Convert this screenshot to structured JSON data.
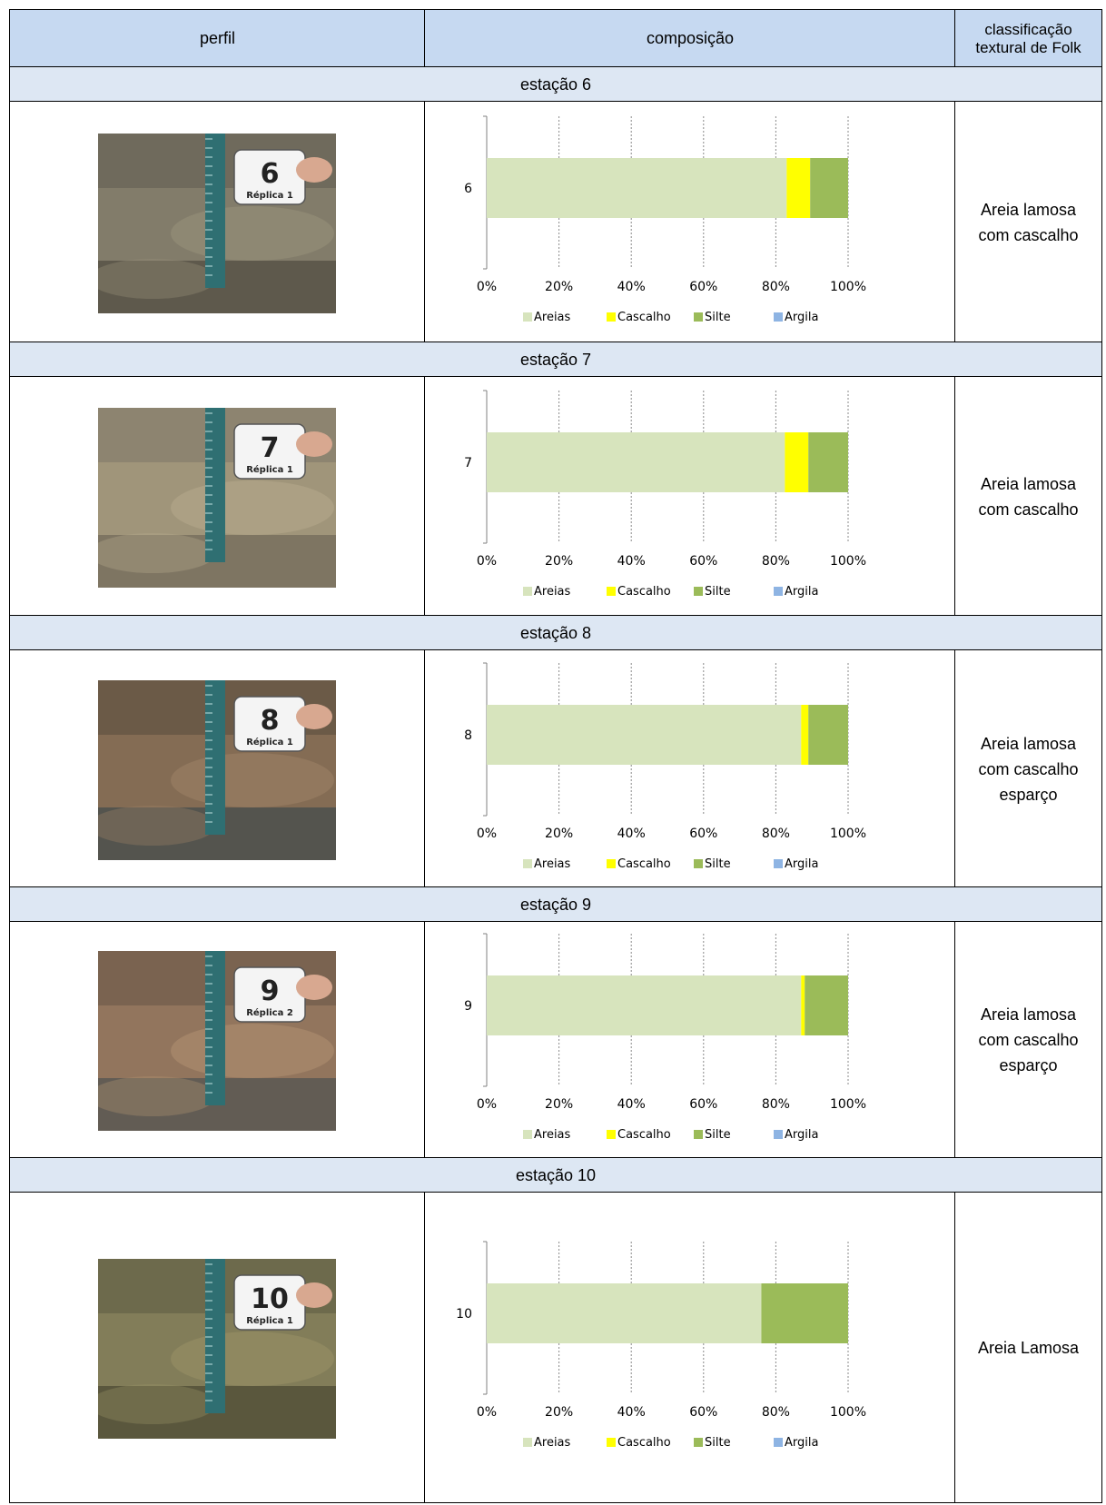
{
  "header": {
    "col1": "perfil",
    "col2": "composição",
    "col3_line1": "classificação",
    "col3_line2": "textural de Folk"
  },
  "rows": [
    {
      "station_label": "estação 6",
      "category": "6",
      "photo": {
        "marker_number": "6",
        "marker_text": "Réplica 1",
        "palette": "gray-brown"
      },
      "classification": "Areia lamosa\ncom cascalho"
    },
    {
      "station_label": "estação 7",
      "category": "7",
      "photo": {
        "marker_number": "7",
        "marker_text": "Réplica 1",
        "palette": "tan"
      },
      "classification": "Areia lamosa\ncom cascalho"
    },
    {
      "station_label": "estação 8",
      "category": "8",
      "photo": {
        "marker_number": "8",
        "marker_text": "Réplica 1",
        "palette": "brown"
      },
      "classification": "Areia lamosa\ncom cascalho\nesparço"
    },
    {
      "station_label": "estação 9",
      "category": "9",
      "photo": {
        "marker_number": "9",
        "marker_text": "Réplica 2",
        "palette": "layered"
      },
      "classification": "Areia lamosa\ncom cascalho\nesparço"
    },
    {
      "station_label": "estação 10",
      "category": "10",
      "photo": {
        "marker_number": "10",
        "marker_text": "Réplica 1",
        "palette": "olive"
      },
      "classification": "Areia Lamosa"
    }
  ],
  "chart_data": [
    {
      "type": "bar",
      "orientation": "horizontal",
      "stacked": "percent",
      "categories": [
        "6"
      ],
      "series": [
        {
          "name": "Areias",
          "values": [
            83
          ]
        },
        {
          "name": "Cascalho",
          "values": [
            6.5
          ]
        },
        {
          "name": "Silte",
          "values": [
            10.5
          ]
        },
        {
          "name": "Argila",
          "values": [
            0
          ]
        }
      ],
      "xlim": [
        0,
        100
      ],
      "xticks": [
        "0%",
        "20%",
        "40%",
        "60%",
        "80%",
        "100%"
      ],
      "grid": "vertical dashed",
      "legend": "bottom"
    },
    {
      "type": "bar",
      "orientation": "horizontal",
      "stacked": "percent",
      "categories": [
        "7"
      ],
      "series": [
        {
          "name": "Areias",
          "values": [
            82.5
          ]
        },
        {
          "name": "Cascalho",
          "values": [
            6.5
          ]
        },
        {
          "name": "Silte",
          "values": [
            11
          ]
        },
        {
          "name": "Argila",
          "values": [
            0
          ]
        }
      ],
      "xlim": [
        0,
        100
      ],
      "xticks": [
        "0%",
        "20%",
        "40%",
        "60%",
        "80%",
        "100%"
      ],
      "grid": "vertical dashed",
      "legend": "bottom"
    },
    {
      "type": "bar",
      "orientation": "horizontal",
      "stacked": "percent",
      "categories": [
        "8"
      ],
      "series": [
        {
          "name": "Areias",
          "values": [
            87
          ]
        },
        {
          "name": "Cascalho",
          "values": [
            2
          ]
        },
        {
          "name": "Silte",
          "values": [
            11
          ]
        },
        {
          "name": "Argila",
          "values": [
            0
          ]
        }
      ],
      "xlim": [
        0,
        100
      ],
      "xticks": [
        "0%",
        "20%",
        "40%",
        "60%",
        "80%",
        "100%"
      ],
      "grid": "vertical dashed",
      "legend": "bottom"
    },
    {
      "type": "bar",
      "orientation": "horizontal",
      "stacked": "percent",
      "categories": [
        "9"
      ],
      "series": [
        {
          "name": "Areias",
          "values": [
            87
          ]
        },
        {
          "name": "Cascalho",
          "values": [
            1
          ]
        },
        {
          "name": "Silte",
          "values": [
            12
          ]
        },
        {
          "name": "Argila",
          "values": [
            0
          ]
        }
      ],
      "xlim": [
        0,
        100
      ],
      "xticks": [
        "0%",
        "20%",
        "40%",
        "60%",
        "80%",
        "100%"
      ],
      "grid": "vertical dashed",
      "legend": "bottom"
    },
    {
      "type": "bar",
      "orientation": "horizontal",
      "stacked": "percent",
      "categories": [
        "10"
      ],
      "series": [
        {
          "name": "Areias",
          "values": [
            76
          ]
        },
        {
          "name": "Cascalho",
          "values": [
            0
          ]
        },
        {
          "name": "Silte",
          "values": [
            24
          ]
        },
        {
          "name": "Argila",
          "values": [
            0
          ]
        }
      ],
      "xlim": [
        0,
        100
      ],
      "xticks": [
        "0%",
        "20%",
        "40%",
        "60%",
        "80%",
        "100%"
      ],
      "grid": "vertical dashed",
      "legend": "bottom"
    }
  ],
  "colors": {
    "Areias": "#d7e4bd",
    "Cascalho": "#ffff00",
    "Silte": "#9bbb59",
    "Argila": "#8eb4e3",
    "header_bg": "#c6d9f1",
    "station_bg": "#dde7f3"
  }
}
